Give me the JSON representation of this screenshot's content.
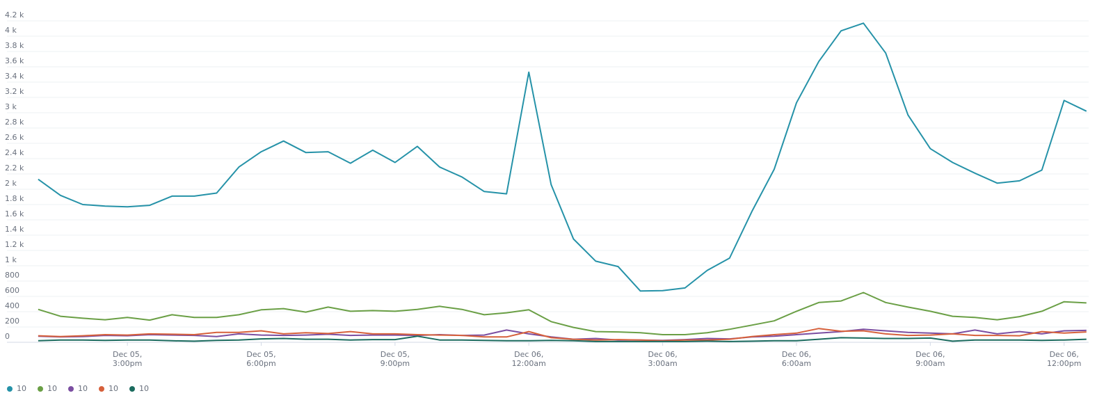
{
  "chart_data": {
    "type": "line",
    "x": [
      13,
      13.5,
      14,
      14.5,
      15,
      15.5,
      16,
      16.5,
      17,
      17.5,
      18,
      18.5,
      19,
      19.5,
      20,
      20.5,
      21,
      21.5,
      22,
      22.5,
      23,
      23.5,
      24,
      24.5,
      25,
      25.5,
      26,
      26.5,
      27,
      27.5,
      28,
      28.5,
      29,
      29.5,
      30,
      30.5,
      31,
      31.5,
      32,
      32.5,
      33,
      33.5,
      34,
      34.5,
      35,
      35.5,
      36,
      36.5
    ],
    "series": [
      {
        "name": "10",
        "color": "#2592a8",
        "values": [
          2130,
          1920,
          1800,
          1780,
          1770,
          1790,
          1910,
          1910,
          1950,
          2290,
          2490,
          2630,
          2480,
          2490,
          2340,
          2510,
          2350,
          2560,
          2290,
          2160,
          1970,
          1940,
          3530,
          2060,
          1350,
          1060,
          990,
          670,
          675,
          710,
          940,
          1100,
          1710,
          2260,
          3130,
          3670,
          4070,
          4170,
          3780,
          2970,
          2530,
          2350,
          2210,
          2080,
          2110,
          2250,
          3160,
          3020
        ]
      },
      {
        "name": "10",
        "color": "#6a9f45",
        "values": [
          430,
          340,
          315,
          295,
          325,
          290,
          360,
          325,
          325,
          360,
          425,
          440,
          395,
          460,
          405,
          415,
          405,
          430,
          470,
          430,
          360,
          385,
          425,
          270,
          195,
          140,
          135,
          125,
          100,
          100,
          125,
          170,
          225,
          280,
          405,
          520,
          540,
          650,
          520,
          460,
          405,
          340,
          325,
          295,
          335,
          405,
          530,
          515
        ]
      },
      {
        "name": "10",
        "color": "#7b4ea1",
        "values": [
          80,
          70,
          75,
          90,
          85,
          100,
          95,
          90,
          75,
          110,
          95,
          90,
          95,
          105,
          90,
          95,
          95,
          90,
          100,
          90,
          95,
          160,
          110,
          70,
          40,
          50,
          30,
          30,
          25,
          35,
          50,
          45,
          70,
          80,
          100,
          120,
          140,
          170,
          150,
          130,
          120,
          110,
          160,
          110,
          140,
          110,
          150,
          155
        ]
      },
      {
        "name": "10",
        "color": "#d6603b",
        "values": [
          85,
          75,
          85,
          100,
          95,
          110,
          105,
          100,
          130,
          130,
          150,
          110,
          125,
          115,
          140,
          110,
          110,
          100,
          95,
          90,
          70,
          70,
          140,
          60,
          40,
          30,
          35,
          30,
          20,
          30,
          30,
          40,
          75,
          100,
          120,
          180,
          145,
          150,
          110,
          90,
          95,
          110,
          90,
          90,
          85,
          140,
          120,
          135
        ]
      },
      {
        "name": "10",
        "color": "#1b6b5e",
        "values": [
          20,
          30,
          30,
          25,
          30,
          30,
          20,
          15,
          25,
          30,
          45,
          50,
          40,
          40,
          30,
          35,
          35,
          80,
          30,
          30,
          25,
          20,
          20,
          25,
          20,
          10,
          10,
          10,
          10,
          10,
          15,
          10,
          15,
          20,
          20,
          40,
          60,
          55,
          50,
          50,
          55,
          15,
          30,
          30,
          30,
          25,
          30,
          40
        ]
      }
    ],
    "xlim": [
      12.3,
      36.55
    ],
    "xticks": [
      {
        "value": 15,
        "label": "Dec 05,\n3:00pm"
      },
      {
        "value": 18,
        "label": "Dec 05,\n6:00pm"
      },
      {
        "value": 21,
        "label": "Dec 05,\n9:00pm"
      },
      {
        "value": 24,
        "label": "Dec 06,\n12:00am"
      },
      {
        "value": 27,
        "label": "Dec 06,\n3:00am"
      },
      {
        "value": 30,
        "label": "Dec 06,\n6:00am"
      },
      {
        "value": 33,
        "label": "Dec 06,\n9:00am"
      },
      {
        "value": 36,
        "label": "Dec 06,\n12:00pm"
      }
    ],
    "ylim": [
      0,
      4200
    ],
    "yticks": [
      0,
      200,
      400,
      600,
      800,
      {
        "value": 1000,
        "label": "1 k"
      },
      {
        "value": 1200,
        "label": "1.2 k"
      },
      {
        "value": 1400,
        "label": "1.4 k"
      },
      {
        "value": 1600,
        "label": "1.6 k"
      },
      {
        "value": 1800,
        "label": "1.8 k"
      },
      {
        "value": 2000,
        "label": "2 k"
      },
      {
        "value": 2200,
        "label": "2.2 k"
      },
      {
        "value": 2400,
        "label": "2.4 k"
      },
      {
        "value": 2600,
        "label": "2.6 k"
      },
      {
        "value": 2800,
        "label": "2.8 k"
      },
      {
        "value": 3000,
        "label": "3 k"
      },
      {
        "value": 3200,
        "label": "3.2 k"
      },
      {
        "value": 3400,
        "label": "3.4 k"
      },
      {
        "value": 3600,
        "label": "3.6 k"
      },
      {
        "value": 3800,
        "label": "3.8 k"
      },
      {
        "value": 4000,
        "label": "4 k"
      },
      {
        "value": 4200,
        "label": "4.2 k"
      }
    ],
    "grid": true,
    "legend": "bottom-left"
  }
}
